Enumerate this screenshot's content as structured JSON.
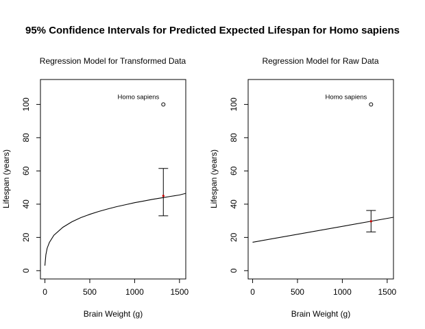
{
  "main_title": "95% Confidence Intervals for Predicted Expected Lifespan for Homo sapiens",
  "chart_data": [
    {
      "type": "line",
      "title": "Regression Model for Transformed Data",
      "xlabel": "Brain Weight (g)",
      "ylabel": "Lifespan (years)",
      "xlim": [
        -50,
        1570
      ],
      "ylim": [
        -5,
        115
      ],
      "xticks": [
        0,
        500,
        1000,
        1500
      ],
      "yticks": [
        0,
        20,
        40,
        60,
        80,
        100
      ],
      "grid": false,
      "annotation": "Homo sapiens",
      "observed_point": {
        "x": 1320,
        "y": 100
      },
      "predicted_point": {
        "x": 1320,
        "y": 45
      },
      "confidence_interval": {
        "x": 1320,
        "lower": 33,
        "upper": 61.5
      },
      "fit_line": {
        "x": [
          0,
          10,
          25,
          50,
          100,
          200,
          300,
          400,
          500,
          600,
          700,
          800,
          900,
          1000,
          1100,
          1200,
          1300,
          1400,
          1500,
          1570
        ],
        "y": [
          3,
          9.5,
          13.5,
          17,
          21.3,
          26.1,
          29.4,
          31.9,
          33.9,
          35.6,
          37.1,
          38.5,
          39.7,
          40.9,
          41.9,
          42.9,
          43.8,
          44.7,
          45.5,
          46.5
        ]
      }
    },
    {
      "type": "line",
      "title": "Regression Model for Raw Data",
      "xlabel": "Brain Weight (g)",
      "ylabel": "Lifespan (years)",
      "xlim": [
        -50,
        1570
      ],
      "ylim": [
        -5,
        115
      ],
      "xticks": [
        0,
        500,
        1000,
        1500
      ],
      "yticks": [
        0,
        20,
        40,
        60,
        80,
        100
      ],
      "grid": false,
      "annotation": "Homo sapiens",
      "observed_point": {
        "x": 1320,
        "y": 100
      },
      "predicted_point": {
        "x": 1320,
        "y": 29.7
      },
      "confidence_interval": {
        "x": 1320,
        "lower": 23.3,
        "upper": 36.2
      },
      "fit_line": {
        "x": [
          0,
          1570
        ],
        "y": [
          17.1,
          32.1
        ]
      }
    }
  ]
}
